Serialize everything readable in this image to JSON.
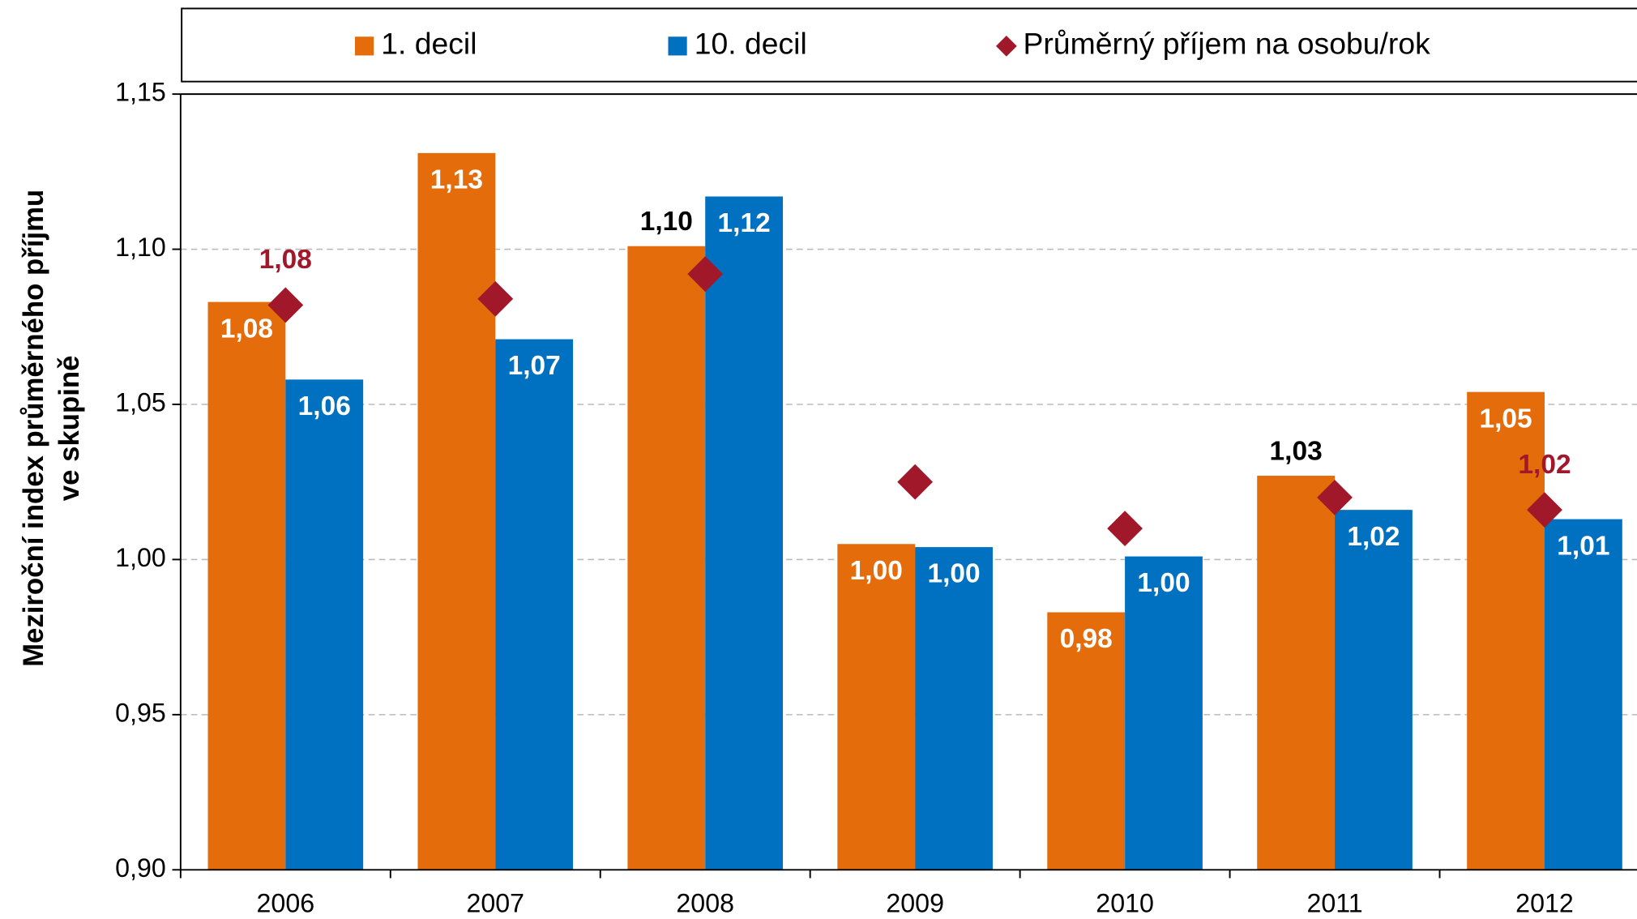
{
  "chart_data": {
    "type": "bar",
    "ylabel": [
      "Meziroční index průměrného příjmu",
      "ve skupině"
    ],
    "categories": [
      "2006",
      "2007",
      "2008",
      "2009",
      "2010",
      "2011",
      "2012"
    ],
    "series": [
      {
        "name": "1. decil",
        "color": "#e46c0a",
        "values": [
          1.083,
          1.131,
          1.101,
          1.005,
          0.983,
          1.027,
          1.054
        ],
        "value_labels": [
          "1,08",
          "1,13",
          "1,10",
          "1,00",
          "0,98",
          "1,03",
          "1,05"
        ]
      },
      {
        "name": "10. decil",
        "color": "#0070c0",
        "values": [
          1.058,
          1.071,
          1.117,
          1.004,
          1.001,
          1.016,
          1.013
        ],
        "value_labels": [
          "1,06",
          "1,07",
          "1,12",
          "1,00",
          "1,00",
          "1,02",
          "1,01"
        ]
      },
      {
        "name": "Průměrný příjem na osobu/rok",
        "type": "scatter",
        "marker": "diamond",
        "color": "#a0182a",
        "values": [
          1.082,
          1.084,
          1.092,
          1.025,
          1.01,
          1.02,
          1.016
        ],
        "value_labels": [
          "1,08",
          null,
          null,
          null,
          null,
          null,
          "1,02"
        ]
      }
    ],
    "ylim": [
      0.9,
      1.15
    ],
    "yticks": [
      {
        "value": 0.9,
        "label": "0,90"
      },
      {
        "value": 0.95,
        "label": "0,95"
      },
      {
        "value": 1.0,
        "label": "1,00"
      },
      {
        "value": 1.05,
        "label": "1,05"
      },
      {
        "value": 1.1,
        "label": "1,10"
      },
      {
        "value": 1.15,
        "label": "1,15"
      }
    ],
    "grid": true,
    "legend": "top"
  }
}
